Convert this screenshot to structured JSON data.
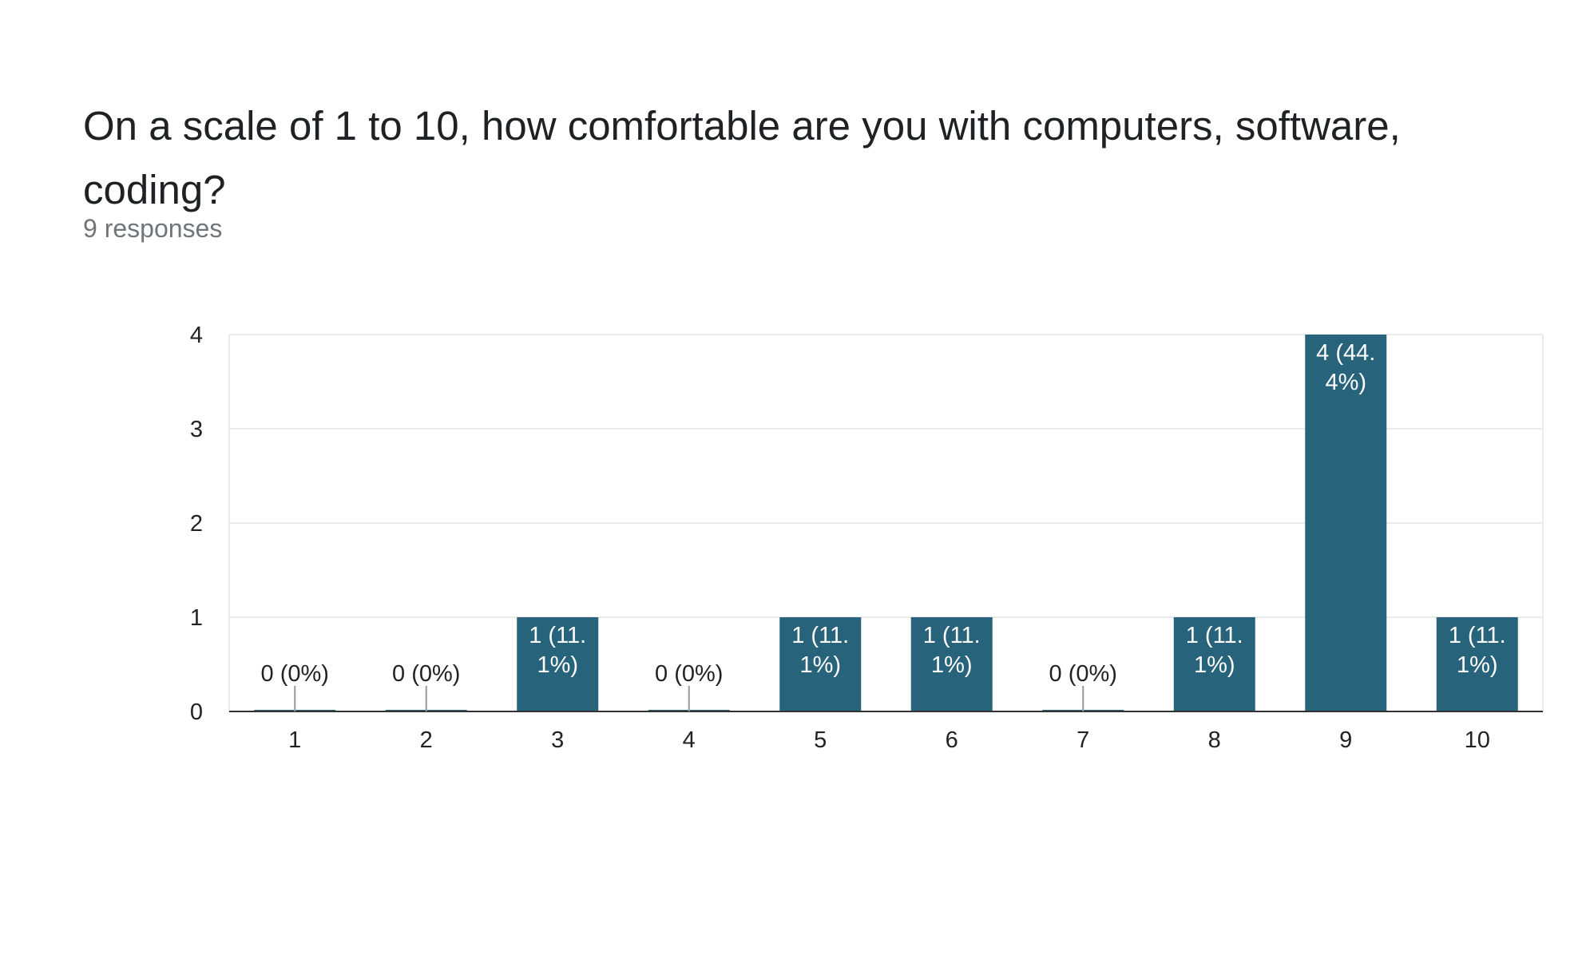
{
  "question": {
    "title": "On a scale of 1 to 10, how comfortable are you with computers, software, coding?",
    "responses": "9 responses"
  },
  "colors": {
    "bar": "#27647b",
    "grid": "#ebebeb",
    "axis": "#333333",
    "label_inside": "#ffffff",
    "label_outside": "#222222",
    "leader": "#999999"
  },
  "chart_data": {
    "type": "bar",
    "categories": [
      "1",
      "2",
      "3",
      "4",
      "5",
      "6",
      "7",
      "8",
      "9",
      "10"
    ],
    "values": [
      0,
      0,
      1,
      0,
      1,
      1,
      0,
      1,
      4,
      1
    ],
    "data_labels": [
      [
        "0 (0%)"
      ],
      [
        "0 (0%)"
      ],
      [
        "1 (11.",
        "1%)"
      ],
      [
        "0 (0%)"
      ],
      [
        "1 (11.",
        "1%)"
      ],
      [
        "1 (11.",
        "1%)"
      ],
      [
        "0 (0%)"
      ],
      [
        "1 (11.",
        "1%)"
      ],
      [
        "4 (44.",
        "4%)"
      ],
      [
        "1 (11.",
        "1%)"
      ]
    ],
    "y_ticks": [
      0,
      1,
      2,
      3,
      4
    ],
    "ylim": [
      0,
      4
    ],
    "title": "",
    "xlabel": "",
    "ylabel": "",
    "grid": true,
    "legend": "none"
  }
}
